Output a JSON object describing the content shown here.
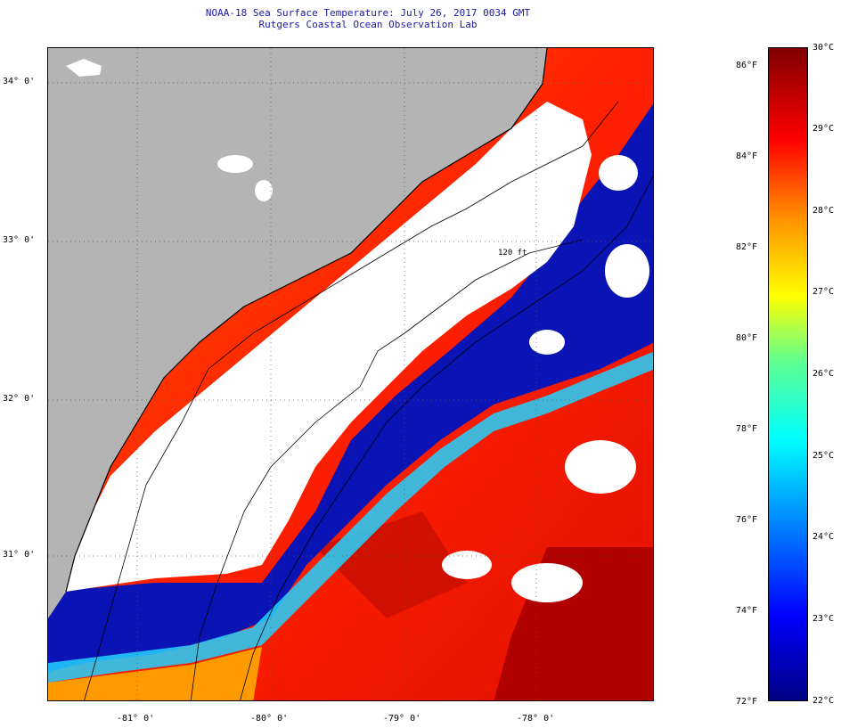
{
  "title": "NOAA-18 Sea Surface Temperature:  July 26, 2017 0034 GMT",
  "subtitle": "Rutgers Coastal Ocean Observation Lab",
  "map": {
    "latitude_labels": [
      "34° 0'",
      "33° 0'",
      "32° 0'",
      "31° 0'"
    ],
    "longitude_labels": [
      "-81° 0'",
      "-80° 0'",
      "-79° 0'",
      "-78° 0'"
    ],
    "isobath_label": "120 ft",
    "colors": {
      "land": "#b4b4b4",
      "cloud": "#ffffff",
      "cold": "#0000a0",
      "warm": "#ff2a00",
      "hot": "#b00000",
      "mid": "#00c8ff"
    }
  },
  "colorbar": {
    "fahrenheit_labels": [
      "86°F",
      "84°F",
      "82°F",
      "80°F",
      "78°F",
      "76°F",
      "74°F",
      "72°F"
    ],
    "celsius_labels": [
      "30°C",
      "29°C",
      "28°C",
      "27°C",
      "26°C",
      "25°C",
      "24°C",
      "23°C",
      "22°C"
    ],
    "min_c": 22,
    "max_c": 30,
    "min_f": 72,
    "max_f": 86
  }
}
